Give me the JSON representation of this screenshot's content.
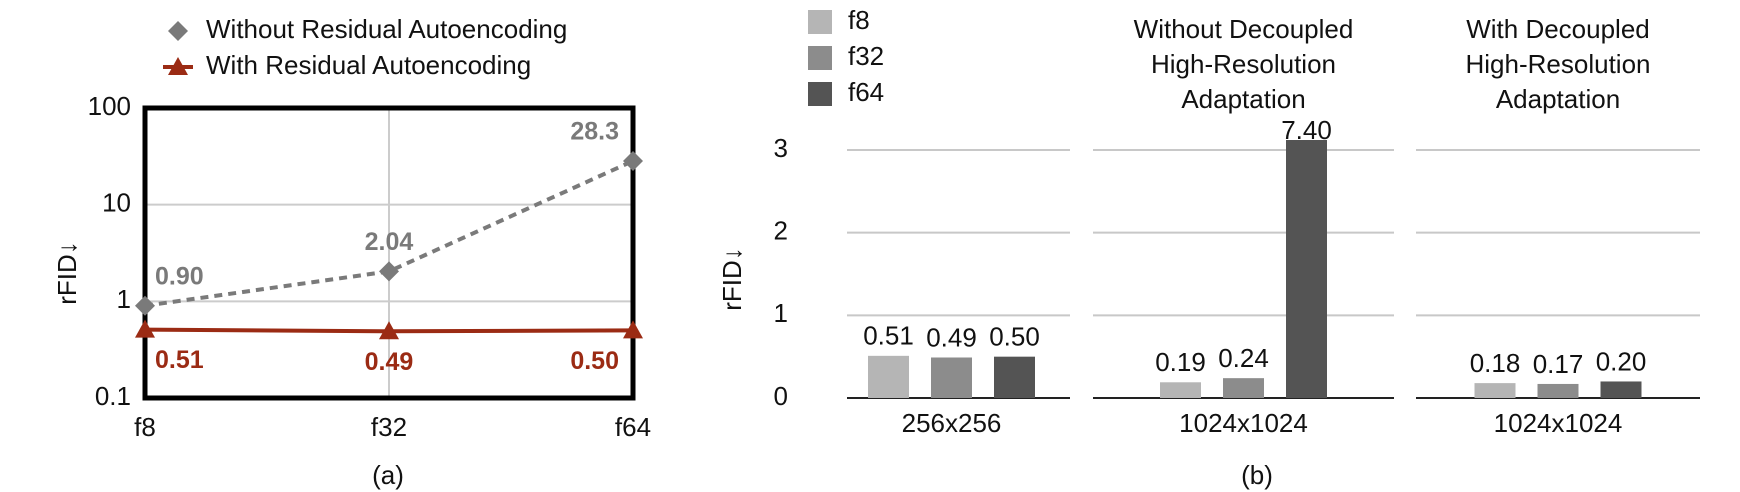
{
  "chart_data": [
    {
      "type": "line",
      "log_scale": true,
      "y_label": "rFID↓",
      "caption": "(a)",
      "categories": [
        "f8",
        "f32",
        "f64"
      ],
      "series": [
        {
          "name": "Without Residual Autoencoding",
          "color": "#7a7a7a",
          "marker": "diamond",
          "dashed": true,
          "values": [
            0.9,
            2.04,
            28.3
          ],
          "value_labels": [
            "0.90",
            "2.04",
            "28.3"
          ]
        },
        {
          "name": "With Residual Autoencoding",
          "color": "#9b2b14",
          "marker": "triangle",
          "dashed": false,
          "values": [
            0.51,
            0.49,
            0.5
          ],
          "value_labels": [
            "0.51",
            "0.49",
            "0.50"
          ]
        }
      ],
      "ylim": [
        0.1,
        100
      ],
      "yticks": [
        0.1,
        1,
        10,
        100
      ],
      "grid": true
    },
    {
      "type": "bar",
      "y_label": "rFID↓",
      "caption": "(b)",
      "categories": [
        "256x256",
        "1024x1024",
        "1024x1024"
      ],
      "panel_titles": [
        null,
        [
          "Without Decoupled",
          "High-Resolution",
          "Adaptation"
        ],
        [
          "With Decoupled",
          "High-Resolution",
          "Adaptation"
        ]
      ],
      "series": [
        {
          "name": "f8",
          "color": "#b5b5b5",
          "values": [
            0.51,
            0.19,
            0.18
          ],
          "value_labels": [
            "0.51",
            "0.19",
            "0.18"
          ]
        },
        {
          "name": "f32",
          "color": "#8c8c8c",
          "values": [
            0.49,
            0.24,
            0.17
          ],
          "value_labels": [
            "0.49",
            "0.24",
            "0.17"
          ]
        },
        {
          "name": "f64",
          "color": "#545454",
          "values": [
            0.5,
            7.4,
            0.2
          ],
          "value_labels": [
            "0.50",
            "7.40",
            "0.20"
          ]
        }
      ],
      "ylim": [
        0,
        3
      ],
      "yticks": [
        0,
        1,
        2,
        3
      ],
      "grid": true
    }
  ]
}
